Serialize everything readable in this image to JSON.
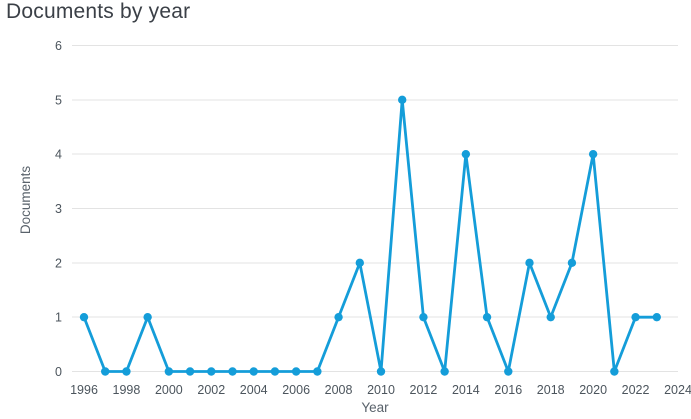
{
  "chart_data": {
    "type": "line",
    "title": "Documents by year",
    "xlabel": "Year",
    "ylabel": "Documents",
    "x": [
      1996,
      1997,
      1998,
      1999,
      2000,
      2001,
      2002,
      2003,
      2004,
      2005,
      2006,
      2007,
      2008,
      2009,
      2010,
      2011,
      2012,
      2013,
      2014,
      2015,
      2016,
      2017,
      2018,
      2019,
      2020,
      2021,
      2022,
      2023
    ],
    "values": [
      1,
      0,
      0,
      1,
      0,
      0,
      0,
      0,
      0,
      0,
      0,
      0,
      1,
      2,
      0,
      5,
      1,
      0,
      4,
      1,
      0,
      2,
      1,
      2,
      4,
      0,
      1,
      1
    ],
    "series_name": "Documents",
    "ylim": [
      0,
      6
    ],
    "yticks": [
      0,
      1,
      2,
      3,
      4,
      5,
      6
    ],
    "xticks": [
      1996,
      1998,
      2000,
      2002,
      2004,
      2006,
      2008,
      2010,
      2012,
      2014,
      2016,
      2018,
      2020,
      2022,
      2024
    ],
    "x_axis_max": 2024,
    "grid": "horizontal",
    "legend": "none",
    "marker": "circle",
    "colors": {
      "line": "#149dd9",
      "marker": "#149dd9",
      "grid": "#e3e3e3",
      "tick_label": "#4c555d",
      "axis_title": "#59626b",
      "title": "#3b4047"
    }
  }
}
